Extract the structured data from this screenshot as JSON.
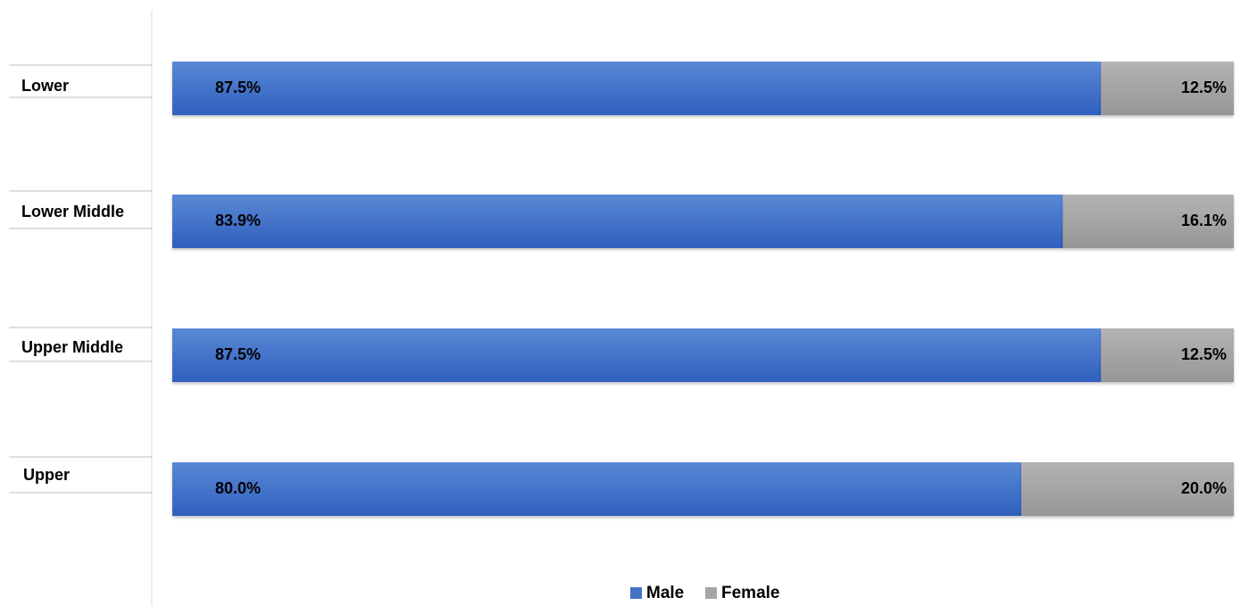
{
  "chart_data": {
    "type": "bar",
    "orientation": "horizontal",
    "stacked": true,
    "percent": true,
    "categories": [
      "Lower",
      "Lower Middle",
      "Upper Middle",
      "Upper"
    ],
    "series": [
      {
        "name": "Male",
        "values": [
          87.5,
          83.9,
          87.5,
          80.0
        ],
        "labels": [
          "87.5%",
          "83.9%",
          "87.5%",
          "80.0%"
        ],
        "color": "#4472c4"
      },
      {
        "name": "Female",
        "values": [
          12.5,
          16.1,
          12.5,
          20.0
        ],
        "labels": [
          "12.5%",
          "16.1%",
          "12.5%",
          "20.0%"
        ],
        "color": "#a5a5a5"
      }
    ],
    "xlim": [
      0,
      100
    ],
    "grid": false,
    "legend_position": "bottom"
  }
}
